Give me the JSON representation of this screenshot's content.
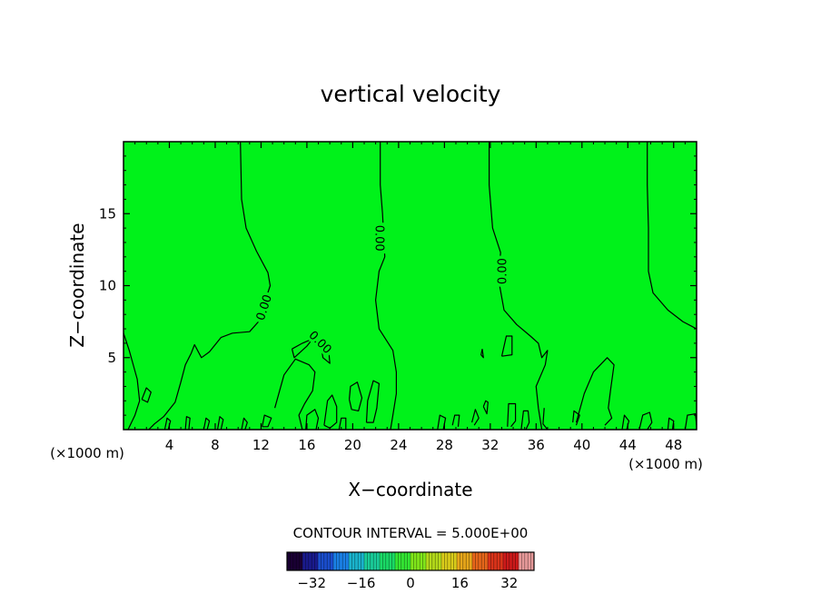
{
  "chart_data": {
    "type": "contour",
    "title": "vertical velocity",
    "xlabel": "X−coordinate",
    "ylabel": "Z−coordinate",
    "x_unit_left": "(×1000 m)",
    "x_unit_right": "(×1000 m)",
    "xlim": [
      0,
      50
    ],
    "ylim": [
      0,
      20
    ],
    "x_ticks": [
      4,
      8,
      12,
      16,
      20,
      24,
      28,
      32,
      36,
      40,
      44,
      48
    ],
    "y_ticks": [
      5,
      10,
      15
    ],
    "fill_color": "#00f21a",
    "contour_interval_text": "CONTOUR INTERVAL =  5.000E+00",
    "colorbar": {
      "range": [
        -40,
        40
      ],
      "ticks": [
        -32,
        -16,
        0,
        16,
        32
      ],
      "colors_low_to_high": [
        "#1a0033",
        "#1a1a8c",
        "#1a4dcc",
        "#1a80e6",
        "#1ab3cc",
        "#1acc99",
        "#1ad966",
        "#33e633",
        "#80e61a",
        "#b3d91a",
        "#d9cc1a",
        "#e6a61a",
        "#e6661a",
        "#d9331a",
        "#cc1a1a",
        "#e69999"
      ]
    },
    "contour_labels": [
      {
        "x": 12.2,
        "z": 8.5,
        "text": "0.00",
        "angle": -72
      },
      {
        "x": 22.4,
        "z": 13.3,
        "text": "0.00",
        "angle": 90
      },
      {
        "x": 33.0,
        "z": 11.0,
        "text": "0.00",
        "angle": -90
      },
      {
        "x": 17.2,
        "z": 6.1,
        "text": "0.00",
        "angle": 45
      }
    ],
    "contours": [
      [
        [
          10.2,
          20.0
        ],
        [
          10.3,
          16
        ],
        [
          10.7,
          14
        ],
        [
          11.6,
          12.4
        ],
        [
          12.6,
          10.9
        ],
        [
          12.8,
          10.0
        ],
        [
          12.3,
          8.8
        ],
        [
          12.0,
          7.7
        ],
        [
          11.0,
          6.8
        ],
        [
          9.5,
          6.7
        ],
        [
          8.5,
          6.4
        ],
        [
          7.5,
          5.4
        ],
        [
          6.8,
          5.0
        ],
        [
          6.2,
          5.9
        ],
        [
          5.9,
          5.3
        ],
        [
          5.4,
          4.5
        ],
        [
          5.0,
          3.3
        ],
        [
          4.5,
          1.9
        ],
        [
          3.5,
          0.9
        ],
        [
          2.7,
          0.4
        ],
        [
          2.2,
          0.0
        ]
      ],
      [
        [
          22.4,
          20.0
        ],
        [
          22.4,
          17
        ],
        [
          22.6,
          15
        ],
        [
          22.8,
          12
        ],
        [
          22.3,
          11.0
        ],
        [
          22.0,
          9.0
        ],
        [
          22.3,
          7.0
        ],
        [
          23.5,
          5.5
        ],
        [
          23.8,
          4.0
        ],
        [
          23.8,
          2.5
        ],
        [
          23.5,
          1.0
        ],
        [
          23.3,
          0.0
        ]
      ],
      [
        [
          31.9,
          20.0
        ],
        [
          31.9,
          17
        ],
        [
          32.2,
          14
        ],
        [
          32.9,
          12.3
        ],
        [
          32.7,
          10.5
        ],
        [
          33.2,
          8.3
        ],
        [
          34.3,
          7.3
        ],
        [
          35.5,
          6.5
        ],
        [
          36.2,
          6.0
        ],
        [
          36.5,
          5.0
        ],
        [
          37.0,
          5.5
        ],
        [
          36.8,
          4.5
        ],
        [
          36.0,
          3.0
        ],
        [
          36.2,
          1.5
        ],
        [
          36.5,
          0.0
        ]
      ],
      [
        [
          45.7,
          20.0
        ],
        [
          45.7,
          17
        ],
        [
          45.8,
          14
        ],
        [
          45.8,
          11
        ],
        [
          46.2,
          9.5
        ],
        [
          47.5,
          8.3
        ],
        [
          48.8,
          7.5
        ],
        [
          50.0,
          7.0
        ]
      ],
      [
        [
          0.0,
          6.7
        ],
        [
          0.5,
          5.5
        ],
        [
          1.2,
          3.5
        ],
        [
          1.4,
          2.0
        ],
        [
          1.0,
          1.0
        ],
        [
          0.4,
          0.0
        ]
      ],
      [
        [
          13.2,
          1.5
        ],
        [
          14.0,
          3.8
        ],
        [
          15.0,
          4.9
        ],
        [
          16.2,
          4.5
        ],
        [
          16.7,
          4.0
        ],
        [
          16.5,
          2.7
        ],
        [
          15.8,
          1.8
        ],
        [
          15.3,
          1.0
        ],
        [
          15.6,
          0.0
        ]
      ],
      [
        [
          14.7,
          5.6
        ],
        [
          15.6,
          6.0
        ],
        [
          16.5,
          6.3
        ],
        [
          16.0,
          5.8
        ],
        [
          14.9,
          5.0
        ],
        [
          14.7,
          5.6
        ]
      ],
      [
        [
          17.3,
          5.5
        ],
        [
          17.9,
          5.5
        ],
        [
          18.0,
          4.6
        ],
        [
          17.4,
          5.0
        ],
        [
          17.3,
          5.5
        ]
      ],
      [
        [
          19.7,
          2.1
        ],
        [
          19.8,
          3.0
        ],
        [
          20.4,
          3.3
        ],
        [
          20.8,
          2.2
        ],
        [
          20.5,
          1.3
        ],
        [
          19.9,
          1.4
        ],
        [
          19.7,
          2.1
        ]
      ],
      [
        [
          21.2,
          0.5
        ],
        [
          21.3,
          2.0
        ],
        [
          21.8,
          3.4
        ],
        [
          22.3,
          3.2
        ],
        [
          22.1,
          1.5
        ],
        [
          21.8,
          0.5
        ],
        [
          21.2,
          0.5
        ]
      ],
      [
        [
          33.0,
          5.1
        ],
        [
          33.4,
          6.5
        ],
        [
          33.9,
          6.5
        ],
        [
          33.9,
          5.2
        ],
        [
          33.0,
          5.1
        ]
      ],
      [
        [
          31.3,
          5.6
        ],
        [
          31.4,
          5.0
        ],
        [
          31.2,
          5.2
        ],
        [
          31.3,
          5.6
        ]
      ],
      [
        [
          31.4,
          1.6
        ],
        [
          31.6,
          2.0
        ],
        [
          31.8,
          1.9
        ],
        [
          31.7,
          1.1
        ],
        [
          31.4,
          1.6
        ]
      ],
      [
        [
          39.5,
          0.5
        ],
        [
          40.2,
          2.5
        ],
        [
          41.0,
          4.0
        ],
        [
          42.2,
          5.0
        ],
        [
          42.8,
          4.5
        ],
        [
          42.5,
          2.8
        ],
        [
          42.3,
          1.5
        ],
        [
          42.6,
          0.8
        ],
        [
          42.0,
          0.3
        ]
      ],
      [
        [
          1.6,
          2.1
        ],
        [
          2.0,
          2.9
        ],
        [
          2.4,
          2.6
        ],
        [
          2.1,
          1.9
        ],
        [
          1.6,
          2.1
        ]
      ],
      [
        [
          12.1,
          0.2
        ],
        [
          12.3,
          1.0
        ],
        [
          12.9,
          0.8
        ],
        [
          12.6,
          0.2
        ],
        [
          12.1,
          0.2
        ]
      ],
      [
        [
          15.9,
          0.0
        ],
        [
          16.0,
          1.0
        ],
        [
          16.7,
          1.4
        ],
        [
          17.0,
          0.8
        ],
        [
          16.8,
          0.0
        ]
      ],
      [
        [
          17.5,
          0.3
        ],
        [
          17.8,
          2.0
        ],
        [
          18.2,
          2.4
        ],
        [
          18.6,
          1.6
        ],
        [
          18.6,
          0.5
        ],
        [
          18.0,
          0.1
        ],
        [
          17.5,
          0.3
        ]
      ],
      [
        [
          18.8,
          0.0
        ],
        [
          19.0,
          0.8
        ],
        [
          19.4,
          0.8
        ],
        [
          19.4,
          0.0
        ]
      ],
      [
        [
          27.4,
          0.0
        ],
        [
          27.6,
          1.0
        ],
        [
          28.1,
          0.8
        ],
        [
          27.9,
          0.0
        ]
      ],
      [
        [
          28.7,
          0.3
        ],
        [
          28.9,
          1.0
        ],
        [
          29.3,
          1.0
        ],
        [
          29.2,
          0.2
        ]
      ],
      [
        [
          30.4,
          0.5
        ],
        [
          30.7,
          1.4
        ],
        [
          31.0,
          0.8
        ],
        [
          30.6,
          0.3
        ]
      ],
      [
        [
          33.5,
          0.2
        ],
        [
          33.6,
          1.8
        ],
        [
          34.2,
          1.8
        ],
        [
          34.2,
          0.6
        ],
        [
          33.8,
          0.2
        ]
      ],
      [
        [
          34.7,
          0.0
        ],
        [
          34.9,
          1.3
        ],
        [
          35.3,
          1.3
        ],
        [
          35.4,
          0.5
        ],
        [
          35.1,
          0.0
        ]
      ],
      [
        [
          36.7,
          1.5
        ],
        [
          36.6,
          0.4
        ],
        [
          37.0,
          0.0
        ]
      ],
      [
        [
          39.2,
          0.5
        ],
        [
          39.3,
          1.3
        ],
        [
          39.8,
          1.0
        ],
        [
          39.5,
          0.3
        ]
      ],
      [
        [
          43.5,
          0.0
        ],
        [
          43.7,
          1.0
        ],
        [
          44.1,
          0.6
        ],
        [
          43.9,
          0.0
        ]
      ],
      [
        [
          45.0,
          0.0
        ],
        [
          45.3,
          1.0
        ],
        [
          45.9,
          1.2
        ],
        [
          46.1,
          0.5
        ],
        [
          45.7,
          0.0
        ]
      ],
      [
        [
          47.5,
          0.0
        ],
        [
          47.6,
          0.8
        ],
        [
          48.0,
          0.6
        ],
        [
          47.9,
          0.0
        ]
      ],
      [
        [
          49.0,
          0.0
        ],
        [
          49.2,
          1.0
        ],
        [
          49.9,
          1.1
        ],
        [
          50.0,
          0.3
        ]
      ],
      [
        [
          5.4,
          0.0
        ],
        [
          5.5,
          0.9
        ],
        [
          5.8,
          0.8
        ],
        [
          5.7,
          0.0
        ]
      ],
      [
        [
          7.0,
          0.0
        ],
        [
          7.2,
          0.8
        ],
        [
          7.5,
          0.6
        ],
        [
          7.3,
          0.0
        ]
      ],
      [
        [
          8.2,
          0.0
        ],
        [
          8.4,
          0.9
        ],
        [
          8.7,
          0.7
        ],
        [
          8.5,
          0.0
        ]
      ],
      [
        [
          10.3,
          0.0
        ],
        [
          10.5,
          0.8
        ],
        [
          10.8,
          0.5
        ],
        [
          10.6,
          0.0
        ]
      ],
      [
        [
          3.6,
          0.0
        ],
        [
          3.8,
          0.8
        ],
        [
          4.1,
          0.6
        ],
        [
          3.9,
          0.0
        ]
      ]
    ]
  }
}
